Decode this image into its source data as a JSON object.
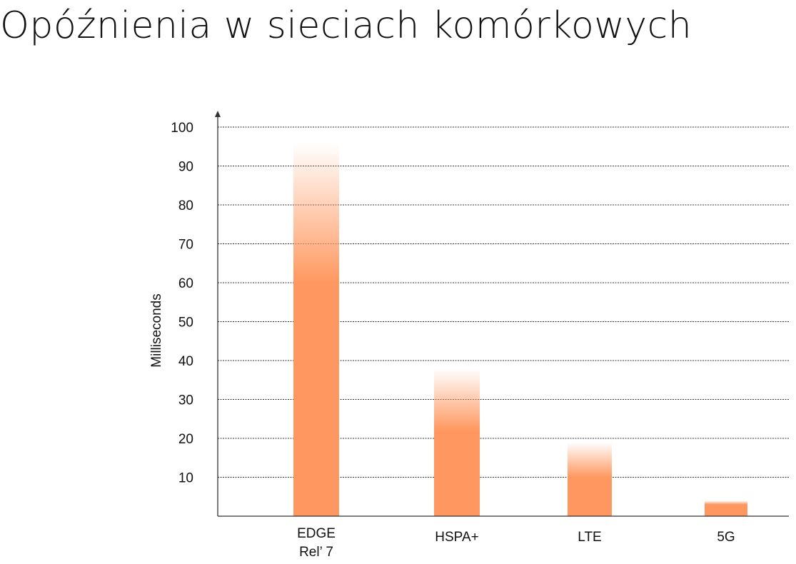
{
  "slide": {
    "title": "Opóźnienia w sieciach komórkowych"
  },
  "colors": {
    "bar": "#ff9860",
    "grid": "#333333",
    "axis": "#333333"
  },
  "chart_data": {
    "type": "bar",
    "title": "",
    "xlabel": "",
    "ylabel": "Milliseconds",
    "categories": [
      [
        "EDGE",
        "Rel’ 7"
      ],
      [
        "HSPA+"
      ],
      [
        "LTE"
      ],
      [
        "5G"
      ]
    ],
    "values": [
      96,
      38,
      19,
      4
    ],
    "fade_ranges": [
      [
        60,
        96
      ],
      [
        22,
        38
      ],
      [
        10,
        19
      ],
      [
        3,
        4
      ]
    ],
    "ylim": [
      0,
      100
    ],
    "yticks": [
      10,
      20,
      30,
      40,
      50,
      60,
      70,
      80,
      90,
      100
    ],
    "grid": true,
    "grid_style": "dashed",
    "legend": "none"
  }
}
